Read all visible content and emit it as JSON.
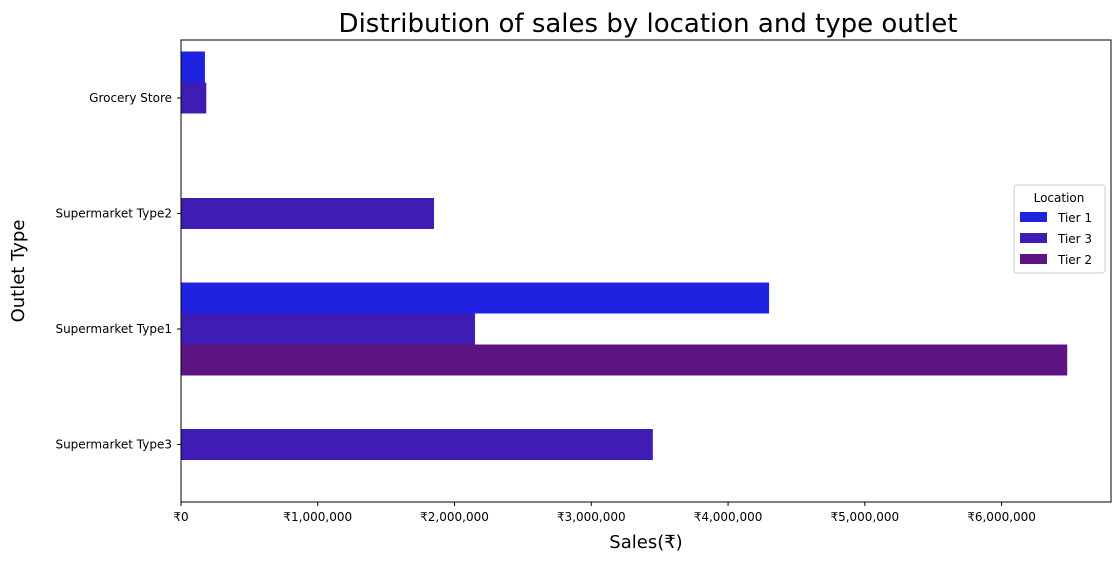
{
  "chart_data": {
    "type": "bar",
    "orientation": "horizontal",
    "title": "Distribution of sales by location and type outlet",
    "xlabel": "Sales(₹)",
    "ylabel": "Outlet Type",
    "categories": [
      "Grocery Store",
      "Supermarket Type2",
      "Supermarket Type1",
      "Supermarket Type3"
    ],
    "xlim": [
      0,
      6800000
    ],
    "xticks": [
      0,
      1000000,
      2000000,
      3000000,
      4000000,
      5000000,
      6000000
    ],
    "xtick_labels": [
      "₹0",
      "₹1,000,000",
      "₹2,000,000",
      "₹3,000,000",
      "₹4,000,000",
      "₹5,000,000",
      "₹6,000,000"
    ],
    "grid": false,
    "legend": {
      "title": "Location",
      "placement": "center-right",
      "entries": [
        "Tier 1",
        "Tier 3",
        "Tier 2"
      ]
    },
    "series": [
      {
        "name": "Tier 1",
        "color": "#1f22e0",
        "values": [
          175000,
          null,
          4300000,
          null
        ]
      },
      {
        "name": "Tier 3",
        "color": "#3f1cb3",
        "values": [
          185000,
          1850000,
          2150000,
          3450000
        ]
      },
      {
        "name": "Tier 2",
        "color": "#5e1483",
        "values": [
          null,
          null,
          6480000,
          null
        ]
      }
    ]
  }
}
